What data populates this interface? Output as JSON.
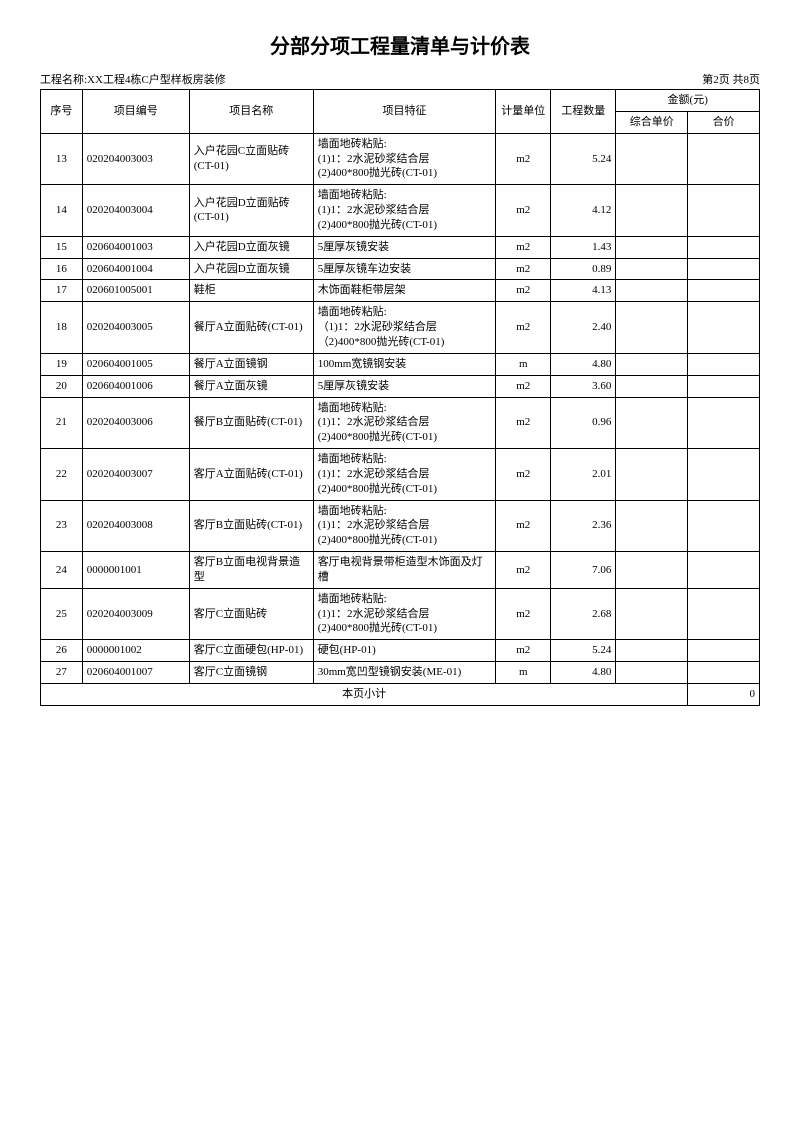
{
  "title": "分部分项工程量清单与计价表",
  "project_label": "工程名称:XX工程4栋C户型样板房装修",
  "page_info": "第2页 共8页",
  "headers": {
    "seq": "序号",
    "code": "项目编号",
    "name": "项目名称",
    "feat": "项目特征",
    "unit": "计量单位",
    "qty": "工程数量",
    "amount": "金额(元)",
    "unit_price": "综合单价",
    "total": "合价"
  },
  "rows": [
    {
      "seq": "13",
      "code": "020204003003",
      "name": "入户花园C立面贴砖(CT-01)",
      "feat": "墙面地砖粘贴:\n(1)1：2水泥砂浆结合层\n(2)400*800抛光砖(CT-01)",
      "unit": "m2",
      "qty": "5.24",
      "price": "",
      "total": ""
    },
    {
      "seq": "14",
      "code": "020204003004",
      "name": "入户花园D立面贴砖(CT-01)",
      "feat": "墙面地砖粘贴:\n(1)1：2水泥砂浆结合层\n(2)400*800抛光砖(CT-01)",
      "unit": "m2",
      "qty": "4.12",
      "price": "",
      "total": ""
    },
    {
      "seq": "15",
      "code": "020604001003",
      "name": "入户花园D立面灰镜",
      "feat": "5厘厚灰镜安装",
      "unit": "m2",
      "qty": "1.43",
      "price": "",
      "total": ""
    },
    {
      "seq": "16",
      "code": "020604001004",
      "name": "入户花园D立面灰镜",
      "feat": "5厘厚灰镜车边安装",
      "unit": "m2",
      "qty": "0.89",
      "price": "",
      "total": ""
    },
    {
      "seq": "17",
      "code": "020601005001",
      "name": "鞋柜",
      "feat": "木饰面鞋柜带层架",
      "unit": "m2",
      "qty": "4.13",
      "price": "",
      "total": ""
    },
    {
      "seq": "18",
      "code": "020204003005",
      "name": "餐厅A立面贴砖(CT-01)",
      "feat": "墙面地砖粘贴:\n（1)1：2水泥砂浆结合层\n（2)400*800抛光砖(CT-01)",
      "unit": "m2",
      "qty": "2.40",
      "price": "",
      "total": ""
    },
    {
      "seq": "19",
      "code": "020604001005",
      "name": "餐厅A立面镜钢",
      "feat": "100mm宽镜钢安装",
      "unit": "m",
      "qty": "4.80",
      "price": "",
      "total": ""
    },
    {
      "seq": "20",
      "code": "020604001006",
      "name": "餐厅A立面灰镜",
      "feat": "5厘厚灰镜安装",
      "unit": "m2",
      "qty": "3.60",
      "price": "",
      "total": ""
    },
    {
      "seq": "21",
      "code": "020204003006",
      "name": "餐厅B立面贴砖(CT-01)",
      "feat": "墙面地砖粘贴:\n(1)1：2水泥砂浆结合层\n(2)400*800抛光砖(CT-01)",
      "unit": "m2",
      "qty": "0.96",
      "price": "",
      "total": ""
    },
    {
      "seq": "22",
      "code": "020204003007",
      "name": "客厅A立面贴砖(CT-01)",
      "feat": "墙面地砖粘贴:\n(1)1：2水泥砂浆结合层\n(2)400*800抛光砖(CT-01)",
      "unit": "m2",
      "qty": "2.01",
      "price": "",
      "total": ""
    },
    {
      "seq": "23",
      "code": "020204003008",
      "name": "客厅B立面贴砖(CT-01)",
      "feat": "墙面地砖粘贴:\n(1)1：2水泥砂浆结合层\n(2)400*800抛光砖(CT-01)",
      "unit": "m2",
      "qty": "2.36",
      "price": "",
      "total": ""
    },
    {
      "seq": "24",
      "code": "0000001001",
      "name": "客厅B立面电视背景造型",
      "feat": "客厅电视背景带柜造型木饰面及灯槽",
      "unit": "m2",
      "qty": "7.06",
      "price": "",
      "total": ""
    },
    {
      "seq": "25",
      "code": "020204003009",
      "name": "客厅C立面贴砖",
      "feat": "墙面地砖粘贴:\n(1)1：2水泥砂浆结合层\n(2)400*800抛光砖(CT-01)",
      "unit": "m2",
      "qty": "2.68",
      "price": "",
      "total": ""
    },
    {
      "seq": "26",
      "code": "0000001002",
      "name": "客厅C立面硬包(HP-01)",
      "feat": "硬包(HP-01)",
      "unit": "m2",
      "qty": "5.24",
      "price": "",
      "total": ""
    },
    {
      "seq": "27",
      "code": "020604001007",
      "name": "客厅C立面镜钢",
      "feat": "30mm宽凹型镜钢安装(ME-01)",
      "unit": "m",
      "qty": "4.80",
      "price": "",
      "total": ""
    }
  ],
  "subtotal_label": "本页小计",
  "subtotal_value": "0"
}
